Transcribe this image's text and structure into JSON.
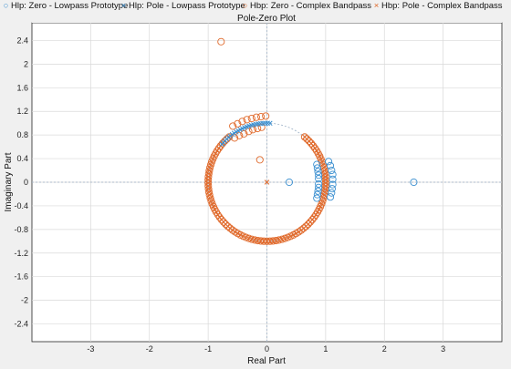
{
  "chart_data": {
    "type": "scatter",
    "title": "Pole-Zero Plot",
    "xlabel": "Real Part",
    "ylabel": "Imaginary Part",
    "xlim": [
      -4.0,
      4.0
    ],
    "ylim": [
      -2.7,
      2.7
    ],
    "xticks": [
      -3,
      -2,
      -1,
      0,
      1,
      2,
      3
    ],
    "yticks": [
      -2.4,
      -2,
      -1.6,
      -1.2,
      -0.8,
      -0.4,
      0,
      0.4,
      0.8,
      1.2,
      1.6,
      2,
      2.4
    ],
    "grid": true,
    "legend_position": "top",
    "colors": {
      "blue": "#3a8fd0",
      "orange": "#e06a2c",
      "unit_circle": "#9aaec4",
      "grid": "#d9d9d9"
    },
    "series": [
      {
        "name": "Hlp: Zero - Lowpass Prototype",
        "marker": "circle",
        "color": "#3a8fd0",
        "points": [
          [
            0.38,
            0.0
          ],
          [
            2.5,
            0.0
          ],
          [
            0.85,
            0.3
          ],
          [
            0.86,
            0.24
          ],
          [
            0.87,
            0.18
          ],
          [
            0.88,
            0.12
          ],
          [
            0.88,
            0.06
          ],
          [
            0.88,
            -0.03
          ],
          [
            0.88,
            -0.09
          ],
          [
            0.87,
            -0.15
          ],
          [
            0.86,
            -0.21
          ],
          [
            0.85,
            -0.27
          ],
          [
            1.05,
            0.35
          ],
          [
            1.08,
            0.28
          ],
          [
            1.1,
            0.2
          ],
          [
            1.12,
            0.13
          ],
          [
            1.12,
            0.05
          ],
          [
            1.12,
            -0.04
          ],
          [
            1.11,
            -0.11
          ],
          [
            1.1,
            -0.18
          ],
          [
            1.08,
            -0.25
          ]
        ]
      },
      {
        "name": "Hlp: Pole - Lowpass Prototype",
        "marker": "x",
        "color": "#3a8fd0",
        "circle_arc": {
          "center": [
            0.0,
            0.0
          ],
          "radius": 1.0,
          "start_deg": 87,
          "end_deg": 140,
          "count": 24
        }
      },
      {
        "name": "Hbp: Zero - Complex Bandpass",
        "marker": "circle",
        "color": "#e06a2c",
        "points": [
          [
            -0.78,
            2.38
          ],
          [
            -0.12,
            0.38
          ],
          [
            -0.58,
            0.95
          ],
          [
            -0.5,
            0.99
          ],
          [
            -0.42,
            1.03
          ],
          [
            -0.34,
            1.06
          ],
          [
            -0.26,
            1.08
          ],
          [
            -0.18,
            1.1
          ],
          [
            -0.1,
            1.11
          ],
          [
            -0.02,
            1.12
          ],
          [
            -0.55,
            0.75
          ],
          [
            -0.47,
            0.79
          ],
          [
            -0.39,
            0.82
          ],
          [
            -0.31,
            0.86
          ],
          [
            -0.24,
            0.89
          ],
          [
            -0.16,
            0.91
          ],
          [
            -0.09,
            0.93
          ]
        ],
        "circle_arc": {
          "center": [
            0.0,
            0.0
          ],
          "radius": 1.0,
          "start_deg": 130,
          "end_deg": 410,
          "count": 95
        }
      },
      {
        "name": "Hbp: Pole - Complex Bandpass",
        "marker": "x",
        "color": "#e06a2c",
        "points": [
          [
            0.0,
            0.0
          ]
        ],
        "circle_arc": {
          "center": [
            0.0,
            0.0
          ],
          "radius": 1.0,
          "start_deg": 130,
          "end_deg": 410,
          "count": 95
        }
      }
    ]
  }
}
